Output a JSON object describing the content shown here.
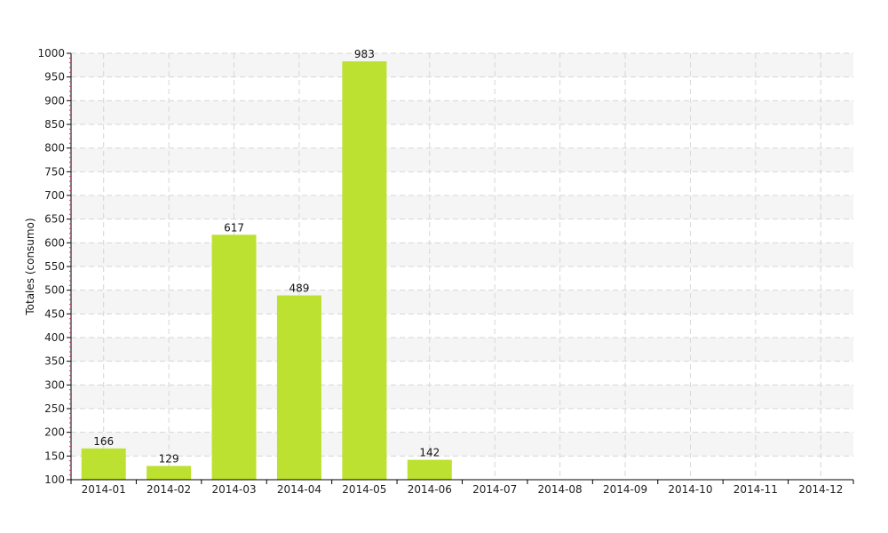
{
  "chart_data": {
    "type": "bar",
    "categories": [
      "2014-01",
      "2014-02",
      "2014-03",
      "2014-04",
      "2014-05",
      "2014-06",
      "2014-07",
      "2014-08",
      "2014-09",
      "2014-10",
      "2014-11",
      "2014-12"
    ],
    "values": [
      166,
      129,
      617,
      489,
      983,
      142,
      null,
      null,
      null,
      null,
      null,
      null
    ],
    "data_labels": [
      "166",
      "129",
      "617",
      "489",
      "983",
      "142",
      "",
      "",
      "",
      "",
      "",
      ""
    ],
    "title": "",
    "xlabel": "",
    "ylabel": "Totales (consumo)",
    "ylim": [
      100,
      1000
    ],
    "yticks": [
      100,
      150,
      200,
      250,
      300,
      350,
      400,
      450,
      500,
      550,
      600,
      650,
      700,
      750,
      800,
      850,
      900,
      950,
      1000
    ],
    "ytick_labels": [
      "100",
      "150",
      "200",
      "250",
      "300",
      "350",
      "400",
      "450",
      "500",
      "550",
      "600",
      "650",
      "700",
      "750",
      "800",
      "850",
      "900",
      "950",
      "1000"
    ],
    "grid": true,
    "legend": "none",
    "colors": {
      "bar": "#bde130",
      "band": "#f5f5f5",
      "grid": "#d6d6d6",
      "axis": "#000000",
      "minor_tick": "#cc3355"
    }
  }
}
